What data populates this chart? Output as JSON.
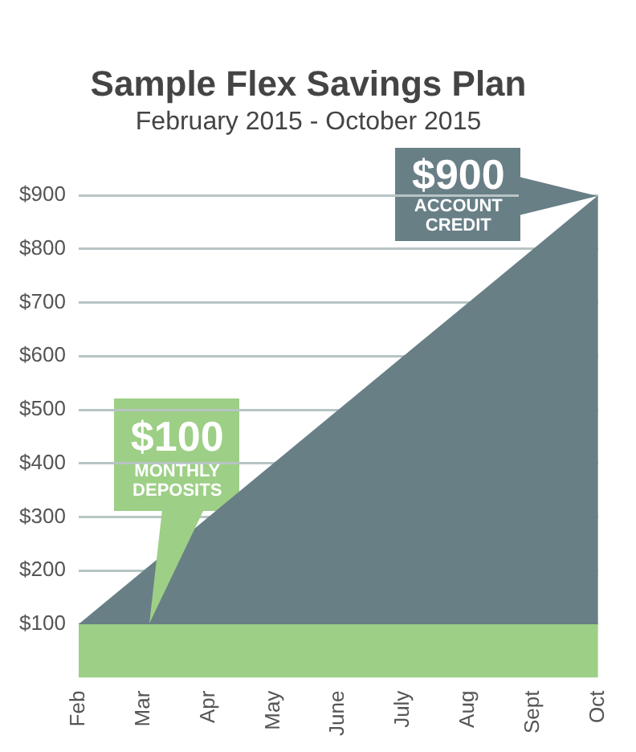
{
  "chart_data": {
    "type": "area",
    "title": "Sample Flex Savings Plan",
    "subtitle": "February 2015 - October 2015",
    "categories": [
      "Feb",
      "Mar",
      "Apr",
      "May",
      "June",
      "July",
      "Aug",
      "Sept",
      "Oct"
    ],
    "series": [
      {
        "color": "#9dcf86",
        "values": [
          100,
          100,
          100,
          100,
          100,
          100,
          100,
          100,
          100
        ]
      },
      {
        "color": "#687f86",
        "values": [
          0,
          100,
          200,
          300,
          400,
          500,
          600,
          700,
          800
        ]
      }
    ],
    "stacked": true,
    "ylim": [
      0,
      900
    ],
    "yticks": [
      {
        "value": 100,
        "label": "$100"
      },
      {
        "value": 200,
        "label": "$200"
      },
      {
        "value": 300,
        "label": "$300"
      },
      {
        "value": 400,
        "label": "$400"
      },
      {
        "value": 500,
        "label": "$500"
      },
      {
        "value": 600,
        "label": "$600"
      },
      {
        "value": 700,
        "label": "$700"
      },
      {
        "value": 800,
        "label": "$800"
      },
      {
        "value": 900,
        "label": "$900"
      }
    ],
    "grid": "y",
    "legend": false,
    "marker": "none",
    "annotations": [
      {
        "text": "$100\nMONTHLY\nDEPOSITS",
        "x": "Mar",
        "y": 100
      },
      {
        "text": "$900\nACCOUNT\nCREDIT",
        "x": "Oct",
        "y": 900
      }
    ]
  }
}
